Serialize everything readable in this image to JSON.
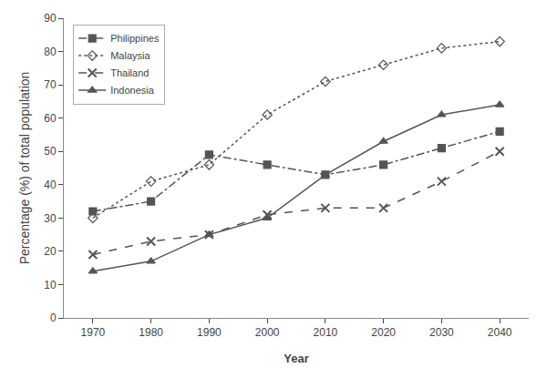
{
  "chart_data": {
    "type": "line",
    "x": [
      1970,
      1980,
      1990,
      2000,
      2010,
      2020,
      2030,
      2040
    ],
    "series": [
      {
        "name": "Philippines",
        "color": "#555555",
        "marker": "square",
        "line_style": "dashdot",
        "values": [
          32,
          35,
          49,
          46,
          43,
          46,
          51,
          56
        ]
      },
      {
        "name": "Malaysia",
        "color": "#555555",
        "marker": "diamond-open",
        "line_style": "dotted",
        "values": [
          30,
          41,
          46,
          61,
          71,
          76,
          81,
          83
        ]
      },
      {
        "name": "Thailand",
        "color": "#555555",
        "marker": "x",
        "line_style": "dashed",
        "values": [
          19,
          23,
          25,
          31,
          33,
          33,
          41,
          50
        ]
      },
      {
        "name": "Indonesia",
        "color": "#555555",
        "marker": "triangle-up",
        "line_style": "solid",
        "values": [
          14,
          17,
          25,
          30,
          43,
          53,
          61,
          64
        ]
      }
    ],
    "xlabel": "Year",
    "ylabel": "Percentage (%) of total population",
    "xlim": [
      1965,
      2045
    ],
    "xticks": [
      1970,
      1980,
      1990,
      2000,
      2010,
      2020,
      2030,
      2040
    ],
    "ylim": [
      0,
      90
    ],
    "yticks": [
      0,
      10,
      20,
      30,
      40,
      50,
      60,
      70,
      80,
      90
    ],
    "grid": false,
    "legend": "upper left",
    "background_color": "#ffffff"
  }
}
